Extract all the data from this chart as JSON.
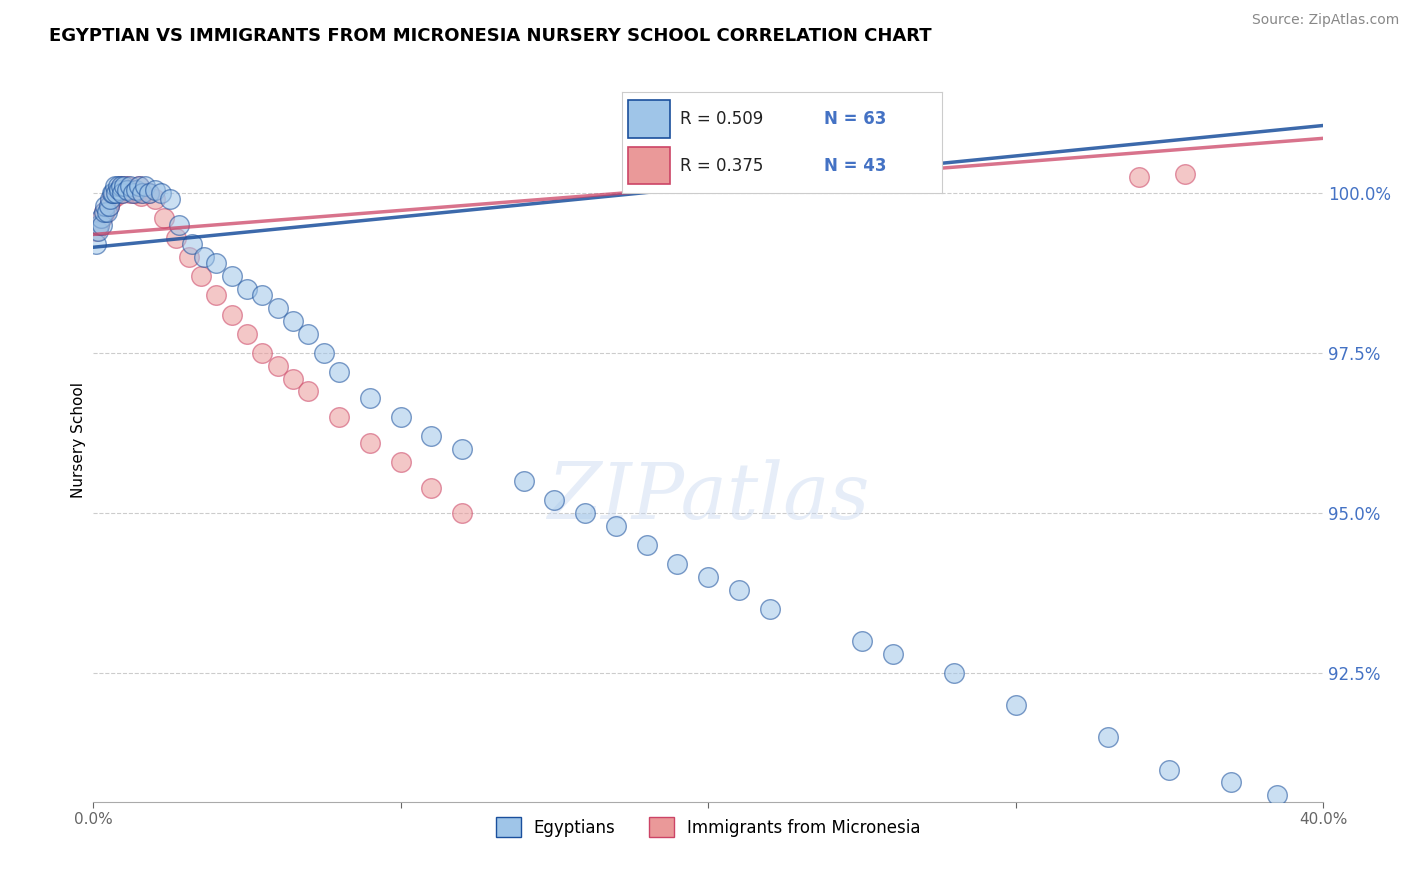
{
  "title": "EGYPTIAN VS IMMIGRANTS FROM MICRONESIA NURSERY SCHOOL CORRELATION CHART",
  "source": "Source: ZipAtlas.com",
  "ylabel": "Nursery School",
  "ytick_values": [
    100.0,
    97.5,
    95.0,
    92.5
  ],
  "xlim": [
    0.0,
    40.0
  ],
  "ylim": [
    90.5,
    101.8
  ],
  "blue_color": "#9fc5e8",
  "pink_color": "#ea9999",
  "blue_line_color": "#1a4f9c",
  "pink_line_color": "#cc4466",
  "legend_R1": "R = 0.509",
  "legend_N1": "N = 63",
  "legend_R2": "R = 0.375",
  "legend_N2": "N = 43",
  "watermark": "ZIPatlas",
  "blue_x": [
    0.1,
    0.15,
    0.2,
    0.25,
    0.3,
    0.35,
    0.4,
    0.45,
    0.5,
    0.55,
    0.6,
    0.65,
    0.7,
    0.75,
    0.8,
    0.85,
    0.9,
    0.95,
    1.0,
    1.1,
    1.2,
    1.3,
    1.4,
    1.5,
    1.6,
    1.7,
    1.8,
    2.0,
    2.2,
    2.5,
    2.8,
    3.2,
    3.6,
    4.0,
    4.5,
    5.0,
    5.5,
    6.0,
    6.5,
    7.0,
    7.5,
    8.0,
    9.0,
    10.0,
    11.0,
    12.0,
    14.0,
    16.0,
    18.0,
    20.0,
    22.0,
    25.0,
    28.0,
    30.0,
    33.0,
    35.0,
    37.0,
    38.5,
    15.0,
    17.0,
    19.0,
    21.0,
    26.0
  ],
  "blue_y": [
    99.2,
    99.4,
    99.5,
    99.6,
    99.5,
    99.7,
    99.8,
    99.7,
    99.8,
    99.9,
    100.0,
    100.0,
    100.1,
    100.0,
    100.1,
    100.05,
    100.1,
    100.0,
    100.1,
    100.05,
    100.1,
    100.0,
    100.05,
    100.1,
    100.0,
    100.1,
    100.0,
    100.05,
    100.0,
    99.9,
    99.5,
    99.2,
    99.0,
    98.9,
    98.7,
    98.5,
    98.4,
    98.2,
    98.0,
    97.8,
    97.5,
    97.2,
    96.8,
    96.5,
    96.2,
    96.0,
    95.5,
    95.0,
    94.5,
    94.0,
    93.5,
    93.0,
    92.5,
    92.0,
    91.5,
    91.0,
    90.8,
    90.6,
    95.2,
    94.8,
    94.2,
    93.8,
    92.8
  ],
  "pink_x": [
    0.1,
    0.2,
    0.3,
    0.4,
    0.5,
    0.6,
    0.7,
    0.8,
    0.9,
    1.0,
    1.1,
    1.2,
    1.3,
    1.4,
    1.5,
    1.6,
    1.8,
    2.0,
    2.3,
    2.7,
    3.1,
    3.5,
    4.0,
    4.5,
    5.0,
    5.5,
    6.0,
    6.5,
    7.0,
    8.0,
    9.0,
    10.0,
    11.0,
    12.0,
    35.5,
    0.35,
    0.55,
    0.75,
    0.95,
    1.15,
    1.35,
    1.55,
    34.0
  ],
  "pink_y": [
    99.4,
    99.5,
    99.6,
    99.7,
    99.8,
    99.9,
    100.0,
    100.05,
    100.1,
    100.05,
    100.1,
    100.0,
    100.05,
    100.0,
    100.1,
    100.0,
    100.0,
    99.9,
    99.6,
    99.3,
    99.0,
    98.7,
    98.4,
    98.1,
    97.8,
    97.5,
    97.3,
    97.1,
    96.9,
    96.5,
    96.1,
    95.8,
    95.4,
    95.0,
    100.3,
    99.7,
    99.85,
    99.95,
    100.0,
    100.05,
    100.0,
    99.95,
    100.25
  ]
}
